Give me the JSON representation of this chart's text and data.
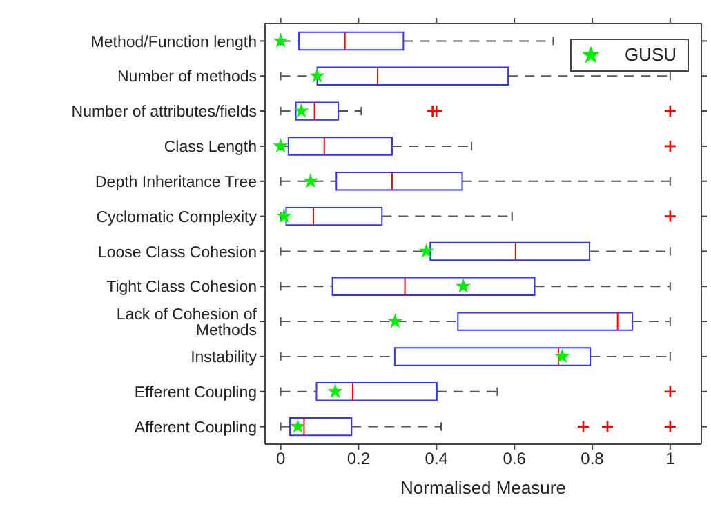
{
  "chart_data": {
    "type": "box",
    "orientation": "horizontal",
    "xlabel": "Normalised Measure",
    "categories": [
      "Method/Function length",
      "Number of methods",
      "Number of attributes/fields",
      "Class Length",
      "Depth Inheritance Tree",
      "Cyclomatic Complexity",
      "Loose Class Cohesion",
      "Tight Class Cohesion",
      "Lack of Cohesion of Methods",
      "Instability",
      "Efferent Coupling",
      "Afferent Coupling"
    ],
    "xlim": [
      -0.04,
      1.08
    ],
    "xticks": [
      0,
      0.2,
      0.4,
      0.6,
      0.8,
      1
    ],
    "boxes": [
      {
        "low": 0,
        "q1": 0.047,
        "median": 0.165,
        "q3": 0.315,
        "high": 0.7
      },
      {
        "low": 0,
        "q1": 0.094,
        "median": 0.249,
        "q3": 0.584,
        "high": 1
      },
      {
        "low": 0,
        "q1": 0.039,
        "median": 0.087,
        "q3": 0.148,
        "high": 0.207,
        "outliers": [
          0.39,
          0.4,
          1
        ]
      },
      {
        "low": 0,
        "q1": 0.02,
        "median": 0.112,
        "q3": 0.286,
        "high": 0.49,
        "outliers": [
          1
        ]
      },
      {
        "low": 0,
        "q1": 0.143,
        "median": 0.286,
        "q3": 0.466,
        "high": 1
      },
      {
        "low": 0,
        "q1": 0.014,
        "median": 0.084,
        "q3": 0.26,
        "high": 0.594,
        "outliers": [
          1
        ]
      },
      {
        "low": 0,
        "q1": 0.384,
        "median": 0.603,
        "q3": 0.793,
        "high": 1
      },
      {
        "low": 0,
        "q1": 0.133,
        "median": 0.319,
        "q3": 0.652,
        "high": 1
      },
      {
        "low": 0,
        "q1": 0.455,
        "median": 0.865,
        "q3": 0.903,
        "high": 1
      },
      {
        "low": 0,
        "q1": 0.293,
        "median": 0.713,
        "q3": 0.795,
        "high": 1
      },
      {
        "low": 0,
        "q1": 0.092,
        "median": 0.185,
        "q3": 0.401,
        "high": 0.556,
        "outliers": [
          1
        ]
      },
      {
        "low": 0,
        "q1": 0.024,
        "median": 0.06,
        "q3": 0.182,
        "high": 0.412,
        "outliers": [
          0.777,
          0.839,
          1
        ]
      }
    ],
    "series": [
      {
        "type": "scatter",
        "name": "GUSU",
        "color": "#00ee00",
        "marker": "star",
        "x": [
          "Method/Function length",
          "Number of methods",
          "Number of attributes/fields",
          "Class Length",
          "Depth Inheritance Tree",
          "Cyclomatic Complexity",
          "Loose Class Cohesion",
          "Tight Class Cohesion",
          "Lack of Cohesion of Methods",
          "Instability",
          "Efferent Coupling",
          "Afferent Coupling"
        ],
        "values": [
          0,
          0.094,
          0.053,
          0,
          0.077,
          0.009,
          0.374,
          0.469,
          0.294,
          0.723,
          0.14,
          0.044
        ]
      }
    ],
    "legend": "top right",
    "grid": false
  }
}
